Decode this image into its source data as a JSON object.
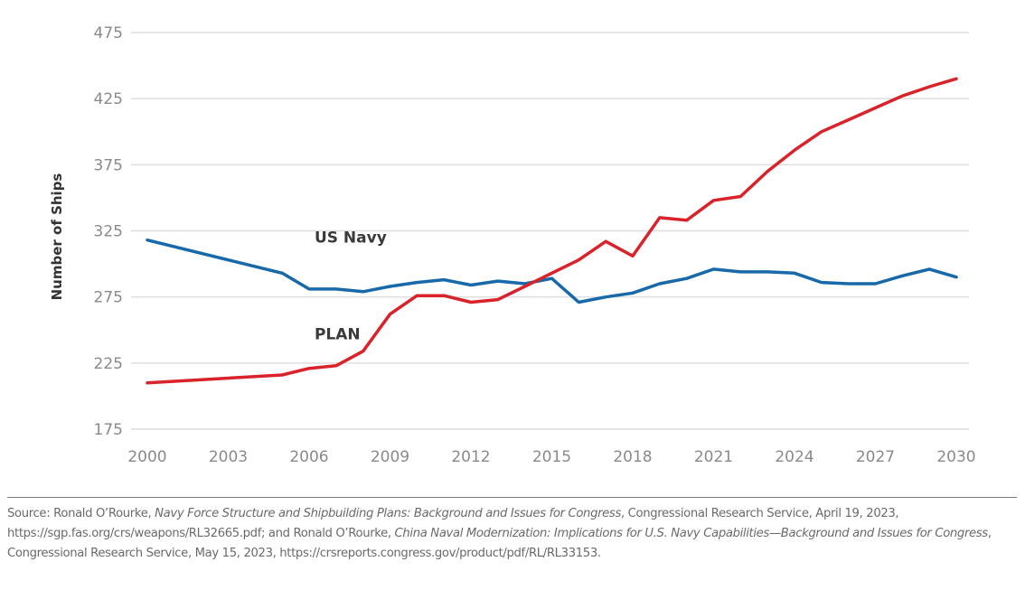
{
  "chart_data": {
    "type": "line",
    "title": "",
    "xlabel": "",
    "ylabel": "Number of Ships",
    "ylim": [
      175,
      475
    ],
    "xlim": [
      2000,
      2030
    ],
    "grid": true,
    "legend": "inline labels",
    "yticks": [
      175,
      225,
      275,
      325,
      375,
      425,
      475
    ],
    "xticks": [
      2000,
      2003,
      2006,
      2009,
      2012,
      2015,
      2018,
      2021,
      2024,
      2027,
      2030
    ],
    "x": [
      2000,
      2005,
      2006,
      2007,
      2008,
      2009,
      2010,
      2011,
      2012,
      2013,
      2014,
      2015,
      2016,
      2017,
      2018,
      2019,
      2020,
      2021,
      2022,
      2023,
      2024,
      2025,
      2026,
      2027,
      2028,
      2029,
      2030
    ],
    "series": [
      {
        "name": "US Navy",
        "color": "#1769aa",
        "values": [
          318,
          293,
          281,
          281,
          279,
          283,
          286,
          288,
          284,
          287,
          285,
          289,
          271,
          275,
          278,
          285,
          289,
          296,
          294,
          294,
          293,
          286,
          285,
          285,
          291,
          296,
          290
        ]
      },
      {
        "name": "PLAN",
        "color": "#d9222a",
        "values": [
          210,
          216,
          221,
          223,
          234,
          262,
          276,
          276,
          271,
          273,
          283,
          293,
          303,
          317,
          306,
          335,
          333,
          348,
          351,
          370,
          386,
          400,
          409,
          418,
          427,
          434,
          440
        ]
      }
    ],
    "annotations": [
      {
        "text": "US Navy",
        "series": "US Navy",
        "x": 2006.2,
        "y": 316
      },
      {
        "text": "PLAN",
        "series": "PLAN",
        "x": 2006.2,
        "y": 243
      }
    ]
  },
  "source": {
    "prefix": "Source: Ronald O’Rourke, ",
    "title1": "Navy Force Structure and Shipbuilding Plans: Background and Issues for Congress",
    "mid1": ", Congressional Research Service, April 19, 2023, https://sgp.fas.org/crs/weapons/RL32665.pdf; and Ronald O’Rourke, ",
    "title2": "China Naval Modernization: Implications for U.S. Navy Capabilities—Background and Issues for Congress",
    "suffix": ", Congressional Research Service, May 15, 2023, https://crsreports.congress.gov/product/pdf/RL/RL33153."
  }
}
